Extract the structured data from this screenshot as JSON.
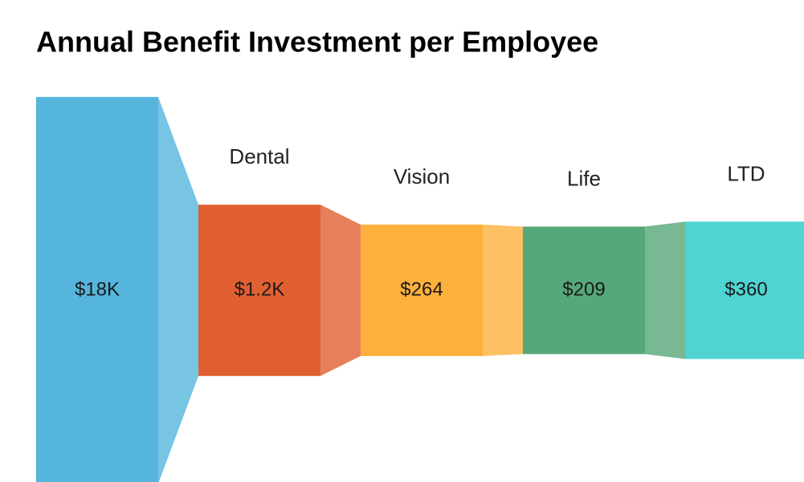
{
  "chart_data": {
    "type": "funnel",
    "title": "Annual Benefit Investment per Employee",
    "categories": [
      null,
      "Dental",
      "Vision",
      "Life",
      "LTD"
    ],
    "values": [
      18000,
      1200,
      264,
      209,
      360
    ],
    "value_labels": [
      "$18K",
      "$1.2K",
      "$264",
      "$209",
      "$360"
    ],
    "colors": [
      "#55b5dc",
      "#e06032",
      "#fdb03c",
      "#56a878",
      "#4fd3d3"
    ]
  }
}
